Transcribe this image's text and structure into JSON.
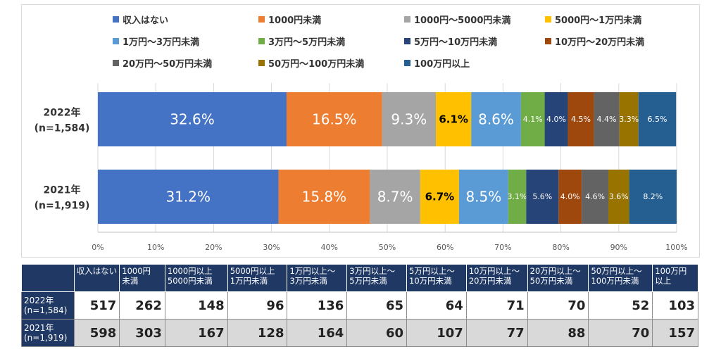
{
  "chart_data": {
    "type": "bar",
    "orientation": "horizontal",
    "stacked": "100%",
    "categories": [
      "2022年\n(n=1,584)",
      "2021年\n(n=1,919)"
    ],
    "category_lines": [
      [
        "2022年",
        "(n=1,584)"
      ],
      [
        "2021年",
        "(n=1,919)"
      ]
    ],
    "series": [
      {
        "name": "収入はない",
        "color": "#4472c4",
        "values": [
          32.6,
          31.2
        ],
        "labels": [
          "32.6%",
          "31.2%"
        ],
        "label_color": "#ffffff",
        "label_size": "large"
      },
      {
        "name": "1000円未満",
        "color": "#ed7d31",
        "values": [
          16.5,
          15.8
        ],
        "labels": [
          "16.5%",
          "15.8%"
        ],
        "label_color": "#ffffff",
        "label_size": "large"
      },
      {
        "name": "1000円～5000円未満",
        "color": "#a5a5a5",
        "values": [
          9.3,
          8.7
        ],
        "labels": [
          "9.3%",
          "8.7%"
        ],
        "label_color": "#ffffff",
        "label_size": "large"
      },
      {
        "name": "5000円～1万円未満",
        "color": "#ffc000",
        "values": [
          6.1,
          6.7
        ],
        "labels": [
          "6.1%",
          "6.7%"
        ],
        "label_color": "#000000",
        "label_size": "medium"
      },
      {
        "name": "1万円～3万円未満",
        "color": "#5b9bd5",
        "values": [
          8.6,
          8.5
        ],
        "labels": [
          "8.6%",
          "8.5%"
        ],
        "label_color": "#ffffff",
        "label_size": "large"
      },
      {
        "name": "3万円～5万円未満",
        "color": "#70ad47",
        "values": [
          4.1,
          3.1
        ],
        "labels": [
          "4.1%",
          "3.1%"
        ],
        "label_color": "#ffffff",
        "label_size": "small"
      },
      {
        "name": "5万円～10万円未満",
        "color": "#264478",
        "values": [
          4.0,
          5.6
        ],
        "labels": [
          "4.0%",
          "5.6%"
        ],
        "label_color": "#ffffff",
        "label_size": "small"
      },
      {
        "name": "10万円～20万円未満",
        "color": "#9e480e",
        "values": [
          4.5,
          4.0
        ],
        "labels": [
          "4.5%",
          "4.0%"
        ],
        "label_color": "#ffffff",
        "label_size": "small"
      },
      {
        "name": "20万円～50万円未満",
        "color": "#636363",
        "values": [
          4.4,
          4.6
        ],
        "labels": [
          "4.4%",
          "4.6%"
        ],
        "label_color": "#ffffff",
        "label_size": "small"
      },
      {
        "name": "50万円～100万円未満",
        "color": "#997300",
        "values": [
          3.3,
          3.6
        ],
        "labels": [
          "3.3%",
          "3.6%"
        ],
        "label_color": "#ffffff",
        "label_size": "small"
      },
      {
        "name": "100万円以上",
        "color": "#255e91",
        "values": [
          6.5,
          8.2
        ],
        "labels": [
          "6.5%",
          "8.2%"
        ],
        "label_color": "#ffffff",
        "label_size": "small"
      }
    ],
    "xlim": [
      0,
      100
    ],
    "x_ticks": [
      "0%",
      "10%",
      "20%",
      "30%",
      "40%",
      "50%",
      "60%",
      "70%",
      "80%",
      "90%",
      "100%"
    ],
    "grid": true,
    "legend_position": "top"
  },
  "table": {
    "headers": [
      [
        "収入はない"
      ],
      [
        "1000円",
        "未満"
      ],
      [
        "1000円以上",
        "5000円未満"
      ],
      [
        "5000円以上",
        "1万円未満"
      ],
      [
        "1万円以上～",
        "3万円未満"
      ],
      [
        "3万円以上～",
        "5万円未満"
      ],
      [
        "5万円以上～",
        "10万円未満"
      ],
      [
        "10万円以上～",
        "20万円未満"
      ],
      [
        "20万円以上～",
        "50万円未満"
      ],
      [
        "50万円以上～",
        "100万円未満"
      ],
      [
        "100万円",
        "以上"
      ]
    ],
    "rows": [
      {
        "label_lines": [
          "2022年",
          "(n=1,584)"
        ],
        "values": [
          "517",
          "262",
          "148",
          "96",
          "136",
          "65",
          "64",
          "71",
          "70",
          "52",
          "103"
        ]
      },
      {
        "label_lines": [
          "2021年",
          "(n=1,919)"
        ],
        "values": [
          "598",
          "303",
          "167",
          "128",
          "164",
          "60",
          "107",
          "77",
          "88",
          "70",
          "157"
        ]
      }
    ]
  }
}
